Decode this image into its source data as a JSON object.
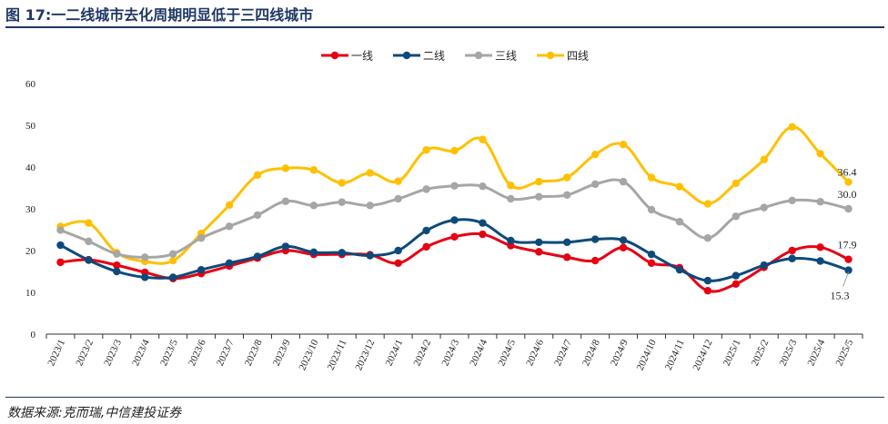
{
  "figure": {
    "title": "图 17:一二线城市去化周期明显低于三四线城市",
    "source": "数据来源:克而瑞,中信建投证券"
  },
  "chart_data": {
    "type": "line",
    "title": "一二线城市去化周期明显低于三四线城市",
    "xlabel": "",
    "ylabel": "",
    "ylim": [
      0,
      60
    ],
    "yticks": [
      0,
      10,
      20,
      30,
      40,
      50,
      60
    ],
    "grid": false,
    "legend_position": "top-center",
    "categories": [
      "2023/1",
      "2023/2",
      "2023/3",
      "2023/4",
      "2023/5",
      "2023/6",
      "2023/7",
      "2023/8",
      "2023/9",
      "2023/10",
      "2023/11",
      "2023/12",
      "2024/1",
      "2024/2",
      "2024/3",
      "2024/4",
      "2024/5",
      "2024/6",
      "2024/7",
      "2024/8",
      "2024/9",
      "2024/10",
      "2024/11",
      "2024/12",
      "2025/1",
      "2025/2",
      "2025/3",
      "2025/4",
      "2025/5"
    ],
    "series": [
      {
        "name": "一线",
        "color": "#e60012",
        "values": [
          17.2,
          17.8,
          16.5,
          14.8,
          13.3,
          14.5,
          16.3,
          18.2,
          20.0,
          19.1,
          19.1,
          19.0,
          17.0,
          20.9,
          23.3,
          23.9,
          21.2,
          19.7,
          18.4,
          17.6,
          20.7,
          17.0,
          15.9,
          10.4,
          12.0,
          16.0,
          20.0,
          20.8,
          17.9
        ]
      },
      {
        "name": "二线",
        "color": "#0d4a7a",
        "values": [
          21.3,
          17.7,
          15.0,
          13.6,
          13.6,
          15.4,
          17.0,
          18.6,
          21.0,
          19.6,
          19.5,
          18.8,
          20.0,
          24.8,
          27.3,
          26.6,
          22.4,
          22.0,
          22.0,
          22.7,
          22.5,
          19.1,
          15.4,
          12.8,
          14.0,
          16.5,
          18.1,
          17.5,
          15.3
        ]
      },
      {
        "name": "三线",
        "color": "#a6a6a6",
        "values": [
          24.9,
          22.2,
          19.2,
          18.4,
          19.2,
          23.0,
          25.8,
          28.5,
          31.8,
          30.8,
          31.6,
          30.8,
          32.4,
          34.7,
          35.5,
          35.4,
          32.4,
          32.9,
          33.3,
          35.9,
          36.5,
          29.8,
          26.9,
          23.0,
          28.2,
          30.3,
          32.0,
          31.7,
          30.0
        ]
      },
      {
        "name": "四线",
        "color": "#ffc000",
        "values": [
          25.8,
          26.6,
          19.5,
          17.4,
          17.6,
          24.1,
          30.9,
          38.1,
          39.7,
          39.3,
          36.2,
          38.6,
          36.6,
          44.1,
          43.9,
          46.6,
          35.6,
          36.5,
          37.5,
          43.0,
          45.4,
          37.5,
          35.3,
          31.2,
          36.1,
          41.8,
          49.6,
          43.2,
          36.4
        ]
      }
    ],
    "annotations": [
      {
        "label": "36.4",
        "series": "四线"
      },
      {
        "label": "30.0",
        "series": "三线"
      },
      {
        "label": "17.9",
        "series": "一线"
      },
      {
        "label": "15.3",
        "series": "二线"
      }
    ]
  }
}
